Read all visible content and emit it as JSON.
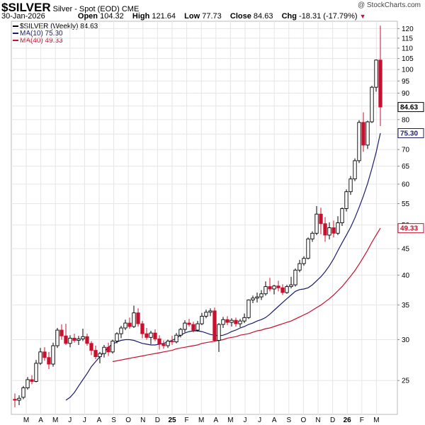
{
  "header": {
    "symbol": "$SILVER",
    "description": "Silver - Spot (EOD)",
    "exchange": "CME",
    "watermark": "@ StockCharts.com",
    "date": "30-Jan-2026",
    "open_label": "Open",
    "open_value": "104.32",
    "high_label": "High",
    "high_value": "121.64",
    "low_label": "Low",
    "low_value": "77.73",
    "close_label": "Close",
    "close_value": "84.63",
    "chg_label": "Chg",
    "chg_value": "-18.31 (-17.79%)",
    "chg_icon": "down-triangle-icon"
  },
  "legend": {
    "price": "$SILVER (Weekly) 84.63",
    "ma10": "MA(10) 75.30",
    "ma40": "MA(40) 49.33"
  },
  "colors": {
    "up": "#000000",
    "down": "#c8102e",
    "ma10": "#1c1c6e",
    "ma40": "#c8102e",
    "grid": "#e6e6e6"
  },
  "chart_data": {
    "type": "candlestick",
    "title": "$SILVER Silver - Spot (EOD) CME",
    "timeframe": "Weekly",
    "scale": "log",
    "ylim": [
      21.5,
      124
    ],
    "y_ticks": [
      25,
      30,
      35,
      40,
      45,
      50,
      55,
      60,
      65,
      70,
      75,
      80,
      85,
      90,
      95,
      100,
      105,
      110,
      115,
      120
    ],
    "x_labels": [
      "M",
      "A",
      "M",
      "J",
      "J",
      "A",
      "S",
      "O",
      "N",
      "D",
      "25",
      "F",
      "M",
      "A",
      "M",
      "J",
      "J",
      "A",
      "S",
      "O",
      "N",
      "D",
      "26",
      "F",
      "M"
    ],
    "last_price_tag": "84.63",
    "ma10_tag": "75.30",
    "ma40_tag": "49.33",
    "candles": [
      {
        "o": 23.0,
        "h": 23.6,
        "l": 22.2,
        "c": 22.9
      },
      {
        "o": 22.9,
        "h": 23.4,
        "l": 22.4,
        "c": 23.1
      },
      {
        "o": 23.2,
        "h": 24.4,
        "l": 23.0,
        "c": 24.2
      },
      {
        "o": 24.2,
        "h": 25.4,
        "l": 24.0,
        "c": 25.1
      },
      {
        "o": 25.1,
        "h": 25.6,
        "l": 24.6,
        "c": 24.9
      },
      {
        "o": 24.9,
        "h": 27.4,
        "l": 24.8,
        "c": 27.0
      },
      {
        "o": 27.0,
        "h": 28.9,
        "l": 26.8,
        "c": 28.4
      },
      {
        "o": 28.4,
        "h": 29.0,
        "l": 27.3,
        "c": 27.7
      },
      {
        "o": 27.7,
        "h": 28.4,
        "l": 26.3,
        "c": 26.9
      },
      {
        "o": 26.9,
        "h": 29.6,
        "l": 26.6,
        "c": 29.2
      },
      {
        "o": 29.2,
        "h": 31.6,
        "l": 28.9,
        "c": 31.3
      },
      {
        "o": 31.3,
        "h": 32.1,
        "l": 30.0,
        "c": 30.5
      },
      {
        "o": 30.5,
        "h": 32.2,
        "l": 29.3,
        "c": 29.5
      },
      {
        "o": 29.5,
        "h": 30.6,
        "l": 29.0,
        "c": 30.2
      },
      {
        "o": 30.2,
        "h": 30.8,
        "l": 29.6,
        "c": 29.9
      },
      {
        "o": 29.9,
        "h": 30.5,
        "l": 29.3,
        "c": 30.1
      },
      {
        "o": 30.1,
        "h": 31.5,
        "l": 29.8,
        "c": 30.4
      },
      {
        "o": 30.4,
        "h": 30.8,
        "l": 29.2,
        "c": 29.5
      },
      {
        "o": 29.5,
        "h": 29.8,
        "l": 28.0,
        "c": 28.6
      },
      {
        "o": 28.6,
        "h": 29.2,
        "l": 27.5,
        "c": 27.8
      },
      {
        "o": 27.8,
        "h": 28.4,
        "l": 27.0,
        "c": 28.2
      },
      {
        "o": 28.2,
        "h": 29.3,
        "l": 27.7,
        "c": 29.0
      },
      {
        "o": 29.0,
        "h": 29.6,
        "l": 27.9,
        "c": 28.4
      },
      {
        "o": 28.4,
        "h": 30.0,
        "l": 28.2,
        "c": 29.8
      },
      {
        "o": 29.8,
        "h": 31.0,
        "l": 29.5,
        "c": 30.8
      },
      {
        "o": 30.8,
        "h": 31.9,
        "l": 30.2,
        "c": 31.6
      },
      {
        "o": 31.6,
        "h": 32.8,
        "l": 31.3,
        "c": 32.3
      },
      {
        "o": 32.3,
        "h": 33.1,
        "l": 31.5,
        "c": 31.8
      },
      {
        "o": 31.8,
        "h": 34.9,
        "l": 31.6,
        "c": 33.8
      },
      {
        "o": 33.8,
        "h": 34.5,
        "l": 31.8,
        "c": 32.2
      },
      {
        "o": 32.2,
        "h": 32.6,
        "l": 30.2,
        "c": 30.8
      },
      {
        "o": 30.8,
        "h": 31.6,
        "l": 30.0,
        "c": 30.3
      },
      {
        "o": 30.3,
        "h": 31.2,
        "l": 29.4,
        "c": 30.9
      },
      {
        "o": 30.9,
        "h": 31.4,
        "l": 29.8,
        "c": 30.1
      },
      {
        "o": 30.1,
        "h": 30.6,
        "l": 28.7,
        "c": 29.4
      },
      {
        "o": 29.4,
        "h": 29.9,
        "l": 28.8,
        "c": 29.2
      },
      {
        "o": 29.2,
        "h": 30.0,
        "l": 28.9,
        "c": 29.8
      },
      {
        "o": 29.8,
        "h": 30.5,
        "l": 29.3,
        "c": 29.7
      },
      {
        "o": 29.7,
        "h": 30.9,
        "l": 29.5,
        "c": 30.6
      },
      {
        "o": 30.6,
        "h": 31.6,
        "l": 30.3,
        "c": 31.4
      },
      {
        "o": 31.4,
        "h": 32.7,
        "l": 31.0,
        "c": 32.3
      },
      {
        "o": 32.3,
        "h": 32.9,
        "l": 31.8,
        "c": 32.1
      },
      {
        "o": 32.1,
        "h": 32.5,
        "l": 31.0,
        "c": 31.3
      },
      {
        "o": 31.3,
        "h": 32.6,
        "l": 31.1,
        "c": 32.2
      },
      {
        "o": 32.2,
        "h": 33.8,
        "l": 32.0,
        "c": 33.3
      },
      {
        "o": 33.3,
        "h": 34.3,
        "l": 33.0,
        "c": 33.9
      },
      {
        "o": 33.9,
        "h": 34.5,
        "l": 33.3,
        "c": 34.1
      },
      {
        "o": 34.1,
        "h": 34.6,
        "l": 29.7,
        "c": 29.9
      },
      {
        "o": 29.9,
        "h": 32.3,
        "l": 28.4,
        "c": 32.1
      },
      {
        "o": 32.1,
        "h": 33.2,
        "l": 31.6,
        "c": 32.8
      },
      {
        "o": 32.8,
        "h": 33.3,
        "l": 32.0,
        "c": 32.4
      },
      {
        "o": 32.4,
        "h": 33.0,
        "l": 31.8,
        "c": 32.7
      },
      {
        "o": 32.7,
        "h": 33.1,
        "l": 31.8,
        "c": 32.2
      },
      {
        "o": 32.2,
        "h": 32.9,
        "l": 31.7,
        "c": 32.6
      },
      {
        "o": 32.6,
        "h": 33.7,
        "l": 32.3,
        "c": 33.1
      },
      {
        "o": 33.1,
        "h": 35.9,
        "l": 32.9,
        "c": 35.8
      },
      {
        "o": 35.8,
        "h": 36.5,
        "l": 35.3,
        "c": 36.1
      },
      {
        "o": 36.1,
        "h": 37.0,
        "l": 35.4,
        "c": 36.3
      },
      {
        "o": 36.3,
        "h": 37.4,
        "l": 35.8,
        "c": 36.8
      },
      {
        "o": 36.8,
        "h": 38.9,
        "l": 36.5,
        "c": 38.0
      },
      {
        "o": 38.0,
        "h": 39.5,
        "l": 37.2,
        "c": 37.6
      },
      {
        "o": 37.6,
        "h": 38.3,
        "l": 36.7,
        "c": 38.1
      },
      {
        "o": 38.1,
        "h": 39.0,
        "l": 37.2,
        "c": 37.8
      },
      {
        "o": 37.8,
        "h": 38.4,
        "l": 36.6,
        "c": 37.0
      },
      {
        "o": 37.0,
        "h": 38.3,
        "l": 36.8,
        "c": 38.0
      },
      {
        "o": 38.0,
        "h": 39.7,
        "l": 37.7,
        "c": 38.3
      },
      {
        "o": 38.3,
        "h": 41.2,
        "l": 38.0,
        "c": 40.9
      },
      {
        "o": 40.9,
        "h": 42.8,
        "l": 40.5,
        "c": 42.1
      },
      {
        "o": 42.1,
        "h": 43.5,
        "l": 41.7,
        "c": 43.1
      },
      {
        "o": 43.1,
        "h": 47.3,
        "l": 42.9,
        "c": 47.0
      },
      {
        "o": 47.0,
        "h": 48.6,
        "l": 46.4,
        "c": 48.2
      },
      {
        "o": 48.2,
        "h": 54.4,
        "l": 47.8,
        "c": 52.5
      },
      {
        "o": 52.5,
        "h": 54.0,
        "l": 48.0,
        "c": 50.3
      },
      {
        "o": 50.3,
        "h": 51.8,
        "l": 46.4,
        "c": 47.8
      },
      {
        "o": 47.8,
        "h": 50.6,
        "l": 46.9,
        "c": 49.4
      },
      {
        "o": 49.4,
        "h": 51.0,
        "l": 47.3,
        "c": 48.2
      },
      {
        "o": 48.2,
        "h": 52.0,
        "l": 47.8,
        "c": 50.5
      },
      {
        "o": 50.5,
        "h": 54.1,
        "l": 49.8,
        "c": 53.8
      },
      {
        "o": 53.8,
        "h": 58.6,
        "l": 53.1,
        "c": 58.0
      },
      {
        "o": 58.0,
        "h": 62.2,
        "l": 57.2,
        "c": 61.4
      },
      {
        "o": 61.4,
        "h": 67.3,
        "l": 60.8,
        "c": 66.6
      },
      {
        "o": 66.6,
        "h": 79.8,
        "l": 65.9,
        "c": 79.0
      },
      {
        "o": 79.0,
        "h": 82.6,
        "l": 69.3,
        "c": 71.4
      },
      {
        "o": 71.4,
        "h": 79.6,
        "l": 70.2,
        "c": 79.2
      },
      {
        "o": 79.2,
        "h": 93.0,
        "l": 78.8,
        "c": 92.4
      },
      {
        "o": 92.4,
        "h": 104.6,
        "l": 90.6,
        "c": 104.3
      },
      {
        "o": 104.3,
        "h": 121.6,
        "l": 77.7,
        "c": 84.6
      }
    ],
    "ma10": [
      22.9,
      23.2,
      23.7,
      24.4,
      25.1,
      25.8,
      26.6,
      27.2,
      27.8,
      28.4,
      29.0,
      29.4,
      29.7,
      29.9,
      30.0,
      30.0,
      29.9,
      29.7,
      29.5,
      29.4,
      29.3,
      29.3,
      29.4,
      29.5,
      29.7,
      29.9,
      30.2,
      30.6,
      30.9,
      31.1,
      31.2,
      31.2,
      31.1,
      30.9,
      30.7,
      30.6,
      30.5,
      30.6,
      30.8,
      31.1,
      31.3,
      31.6,
      31.8,
      32.1,
      32.3,
      32.6,
      32.8,
      33.1,
      33.6,
      34.2,
      34.8,
      35.4,
      36.0,
      36.6,
      37.2,
      37.5,
      37.6,
      37.8,
      38.3,
      39.0,
      39.7,
      40.6,
      41.7,
      43.0,
      44.6,
      46.2,
      47.8,
      49.5,
      51.6,
      54.1,
      56.9,
      60.2,
      64.3,
      69.1,
      75.3
    ],
    "ma10_start": 12,
    "ma40": [
      27.2,
      27.3,
      27.4,
      27.5,
      27.6,
      27.7,
      27.8,
      27.9,
      28.0,
      28.1,
      28.2,
      28.3,
      28.4,
      28.5,
      28.6,
      28.8,
      28.9,
      29.0,
      29.1,
      29.2,
      29.3,
      29.5,
      29.6,
      29.7,
      29.8,
      29.9,
      30.0,
      30.2,
      30.3,
      30.4,
      30.6,
      30.7,
      30.8,
      31.0,
      31.2,
      31.3,
      31.5,
      31.6,
      31.8,
      32.0,
      32.2,
      32.4,
      32.6,
      32.9,
      33.2,
      33.5,
      33.8,
      34.2,
      34.6,
      35.0,
      35.5,
      36.0,
      36.6,
      37.3,
      38.0,
      38.9,
      39.8,
      40.8,
      42.0,
      43.3,
      44.7,
      46.3,
      47.8,
      49.3
    ],
    "ma40_start": 23
  }
}
